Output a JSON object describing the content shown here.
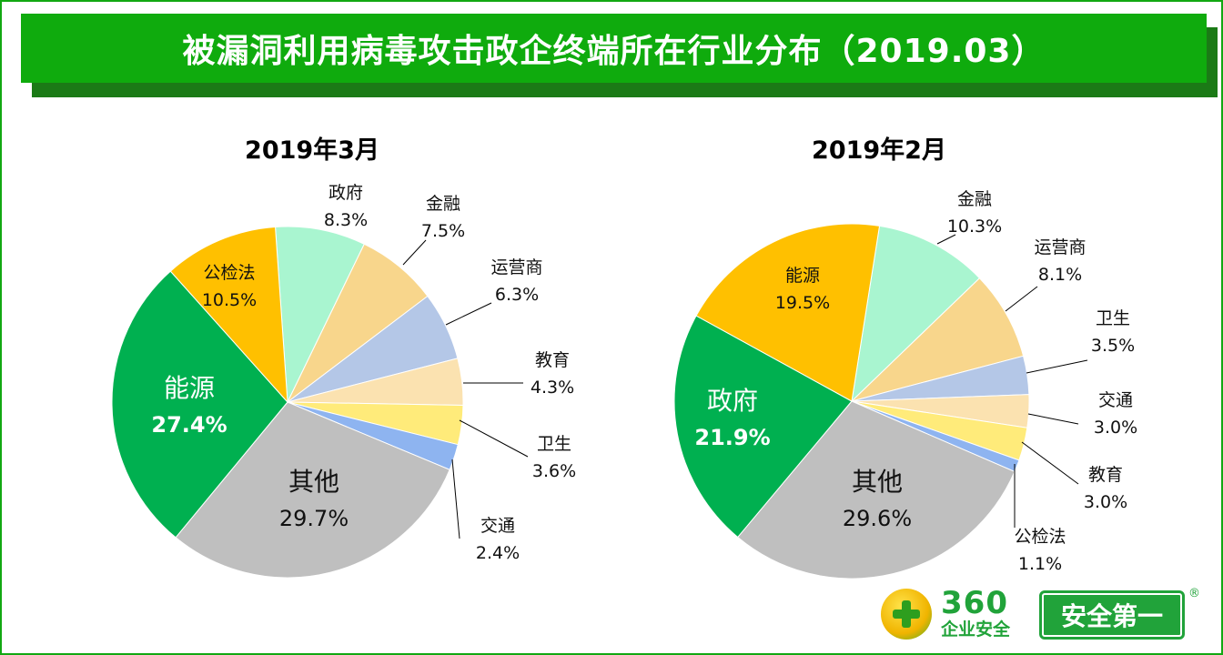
{
  "title": "被漏洞利用病毒攻击政企终端所在行业分布（2019.03）",
  "logo": {
    "brand": "360",
    "sub": "企业安全",
    "slogan": "安全第一",
    "reg": "®"
  },
  "colors": {
    "能源_green": "#00b050",
    "orange": "#ffc000",
    "gray": "#bfbfbf",
    "mint": "#a9f5d0",
    "light_orange": "#f8d68c",
    "light_blue": "#b4c7e7",
    "peach": "#fbe2b0",
    "yellow": "#ffeb7a",
    "blue": "#8eb4f0"
  },
  "chart_data": [
    {
      "type": "pie",
      "title": "2019年3月",
      "slices": [
        {
          "label": "政府",
          "value": 8.3,
          "display": "8.3%",
          "color": "#a9f5d0"
        },
        {
          "label": "金融",
          "value": 7.5,
          "display": "7.5%",
          "color": "#f8d68c"
        },
        {
          "label": "运营商",
          "value": 6.3,
          "display": "6.3%",
          "color": "#b4c7e7"
        },
        {
          "label": "教育",
          "value": 4.3,
          "display": "4.3%",
          "color": "#fbe2b0"
        },
        {
          "label": "卫生",
          "value": 3.6,
          "display": "3.6%",
          "color": "#ffeb7a"
        },
        {
          "label": "交通",
          "value": 2.4,
          "display": "2.4%",
          "color": "#8eb4f0"
        },
        {
          "label": "其他",
          "value": 29.7,
          "display": "29.7%",
          "color": "#bfbfbf"
        },
        {
          "label": "能源",
          "value": 27.4,
          "display": "27.4%",
          "color": "#00b050"
        },
        {
          "label": "公检法",
          "value": 10.5,
          "display": "10.5%",
          "color": "#ffc000"
        }
      ]
    },
    {
      "type": "pie",
      "title": "2019年2月",
      "slices": [
        {
          "label": "金融",
          "value": 10.3,
          "display": "10.3%",
          "color": "#a9f5d0"
        },
        {
          "label": "运营商",
          "value": 8.1,
          "display": "8.1%",
          "color": "#f8d68c"
        },
        {
          "label": "卫生",
          "value": 3.5,
          "display": "3.5%",
          "color": "#b4c7e7"
        },
        {
          "label": "交通",
          "value": 3.0,
          "display": "3.0%",
          "color": "#fbe2b0"
        },
        {
          "label": "教育",
          "value": 3.0,
          "display": "3.0%",
          "color": "#ffeb7a"
        },
        {
          "label": "公检法",
          "value": 1.1,
          "display": "1.1%",
          "color": "#8eb4f0"
        },
        {
          "label": "其他",
          "value": 29.6,
          "display": "29.6%",
          "color": "#bfbfbf"
        },
        {
          "label": "政府",
          "value": 21.9,
          "display": "21.9%",
          "color": "#00b050"
        },
        {
          "label": "能源",
          "value": 19.5,
          "display": "19.5%",
          "color": "#ffc000"
        }
      ]
    }
  ]
}
